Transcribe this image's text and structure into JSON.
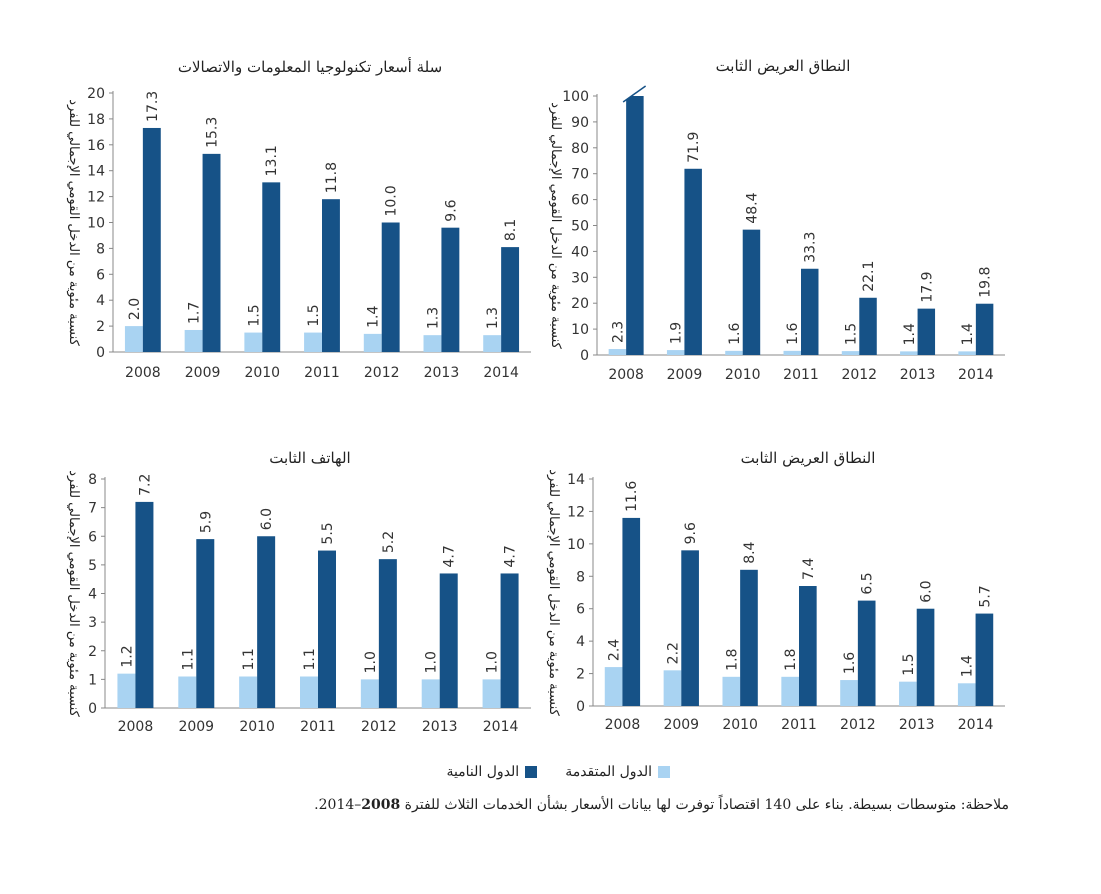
{
  "colors": {
    "developed": "#a9d3f2",
    "developing": "#165287",
    "axis": "#888888",
    "text": "#333333"
  },
  "legend": {
    "developed_label": "الدول المتقدمة",
    "developing_label": "الدول النامية"
  },
  "note": {
    "prefix": "ملاحظة: متوسطات بسيطة. بناء على 140 اقتصاداً توفرت لها بيانات الأسعار بشأن الخدمات الثلاث للفترة ",
    "bold": "2008",
    "suffix": "–2014."
  },
  "chart_data": [
    {
      "id": "ict-basket",
      "type": "bar",
      "title": "سلة أسعار تكنولوجيا المعلومات والاتصالات",
      "ylabel": "كنسبة مئوية من الدخل القومي الإجمالي للفرد",
      "categories": [
        "2008",
        "2009",
        "2010",
        "2011",
        "2012",
        "2013",
        "2014"
      ],
      "ylim": [
        0,
        20
      ],
      "yticks": [
        0,
        2,
        4,
        6,
        8,
        10,
        12,
        14,
        16,
        18,
        20
      ],
      "series": [
        {
          "name": "الدول المتقدمة",
          "values": [
            2.0,
            1.7,
            1.5,
            1.5,
            1.4,
            1.3,
            1.3
          ],
          "labels": [
            "2.0",
            "1.7",
            "1.5",
            "1.5",
            "1.4",
            "1.3",
            "1.3"
          ]
        },
        {
          "name": "الدول النامية",
          "values": [
            17.3,
            15.3,
            13.1,
            11.8,
            10.0,
            9.6,
            8.1
          ],
          "labels": [
            "17.3",
            "15.3",
            "13.1",
            "11.8",
            "10.0",
            "9.6",
            "8.1"
          ]
        }
      ]
    },
    {
      "id": "fixed-broadband",
      "type": "bar",
      "title": "النطاق العريض الثابت",
      "ylabel": "كنسبة مئوية من الدخل القومي الإجمالي للفرد",
      "categories": [
        "2008",
        "2009",
        "2010",
        "2011",
        "2012",
        "2013",
        "2014"
      ],
      "ylim": [
        0,
        100
      ],
      "yticks": [
        0,
        10,
        20,
        30,
        40,
        50,
        60,
        70,
        80,
        90,
        100
      ],
      "truncated_first_developing": true,
      "series": [
        {
          "name": "الدول المتقدمة",
          "values": [
            2.3,
            1.9,
            1.6,
            1.6,
            1.5,
            1.4,
            1.4
          ],
          "labels": [
            "2.3",
            "1.9",
            "1.6",
            "1.6",
            "1.5",
            "1.4",
            "1.4"
          ]
        },
        {
          "name": "الدول النامية",
          "values": [
            100,
            71.9,
            48.4,
            33.3,
            22.1,
            17.9,
            19.8
          ],
          "labels": [
            "",
            "71.9",
            "48.4",
            "33.3",
            "22.1",
            "17.9",
            "19.8"
          ]
        }
      ]
    },
    {
      "id": "fixed-telephone",
      "type": "bar",
      "title": "الهاتف الثابت",
      "ylabel": "كنسبة مئوية من الدخل القومي الإجمالي للفرد",
      "categories": [
        "2008",
        "2009",
        "2010",
        "2011",
        "2012",
        "2013",
        "2014"
      ],
      "ylim": [
        0,
        8
      ],
      "yticks": [
        0,
        1,
        2,
        3,
        4,
        5,
        6,
        7,
        8
      ],
      "series": [
        {
          "name": "الدول المتقدمة",
          "values": [
            1.2,
            1.1,
            1.1,
            1.1,
            1.0,
            1.0,
            1.0
          ],
          "labels": [
            "1.2",
            "1.1",
            "1.1",
            "1.1",
            "1.0",
            "1.0",
            "1.0"
          ]
        },
        {
          "name": "الدول النامية",
          "values": [
            7.2,
            5.9,
            6.0,
            5.5,
            5.2,
            4.7,
            4.7
          ],
          "labels": [
            "7.2",
            "5.9",
            "6.0",
            "5.5",
            "5.2",
            "4.7",
            "4.7"
          ]
        }
      ]
    },
    {
      "id": "mobile-broadband",
      "type": "bar",
      "title": "النطاق العريض الثابت",
      "ylabel": "كنسبة مئوية من الدخل القومي الإجمالي للفرد",
      "categories": [
        "2008",
        "2009",
        "2010",
        "2011",
        "2012",
        "2013",
        "2014"
      ],
      "ylim": [
        0,
        14
      ],
      "yticks": [
        0,
        2,
        4,
        6,
        8,
        10,
        12,
        14
      ],
      "series": [
        {
          "name": "الدول المتقدمة",
          "values": [
            2.4,
            2.2,
            1.8,
            1.8,
            1.6,
            1.5,
            1.4
          ],
          "labels": [
            "2.4",
            "2.2",
            "1.8",
            "1.8",
            "1.6",
            "1.5",
            "1.4"
          ]
        },
        {
          "name": "الدول النامية",
          "values": [
            11.6,
            9.6,
            8.4,
            7.4,
            6.5,
            6.0,
            5.7
          ],
          "labels": [
            "11.6",
            "9.6",
            "8.4",
            "7.4",
            "6.5",
            "6.0",
            "5.7"
          ]
        }
      ]
    }
  ]
}
